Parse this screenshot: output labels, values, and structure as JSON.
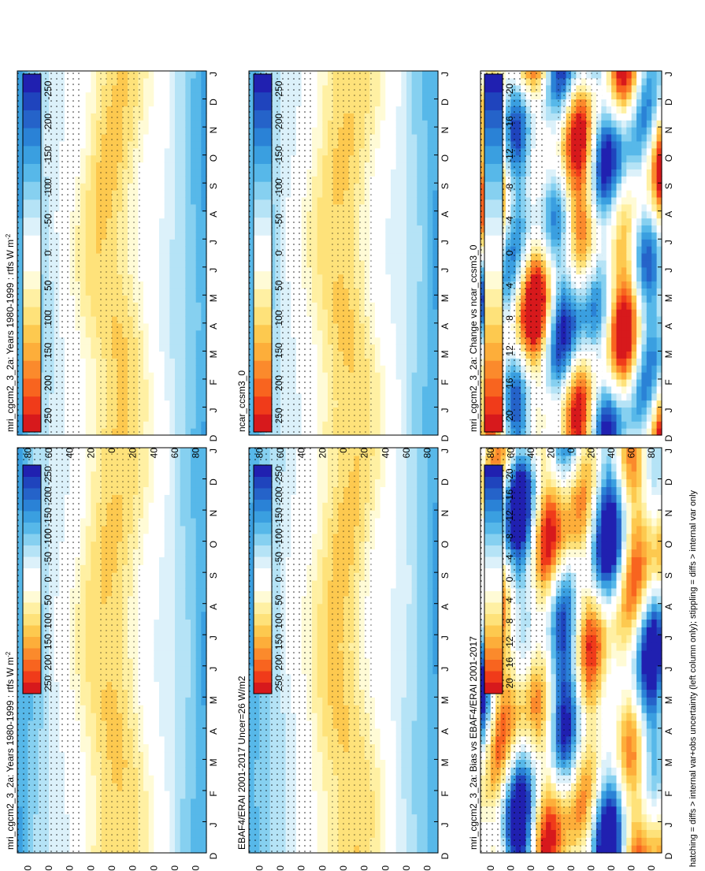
{
  "footnote": "hatching = diffs > internal var+obs uncertainty (left column only); stippling = diffs > internal var only",
  "month_ticks": [
    "D",
    "J",
    "F",
    "M",
    "A",
    "M",
    "J",
    "J",
    "A",
    "S",
    "O",
    "N",
    "D",
    "J"
  ],
  "lat_ticks": [
    "80",
    "60",
    "40",
    "20",
    "0",
    "20",
    "40",
    "60",
    "80"
  ],
  "colorbar_main": [
    "250",
    "200",
    "150",
    "100",
    "50",
    "0",
    "-50",
    "-100",
    "-150",
    "-200",
    "-250"
  ],
  "colorbar_diff": [
    "20",
    "16",
    "12",
    "8",
    "4",
    "0",
    "-4",
    "-8",
    "-12",
    "-16",
    "-20"
  ],
  "palette": [
    "#d7191c",
    "#f03b1a",
    "#f8641f",
    "#fb8a2c",
    "#fdae3a",
    "#fdc94f",
    "#fee27a",
    "#fff0a3",
    "#fffbd6",
    "#ffffff",
    "#ffffff",
    "#dcf1fa",
    "#b5e3f6",
    "#86d0f0",
    "#57b8e9",
    "#3a9fe0",
    "#2a82d6",
    "#2563c9",
    "#1f44bd",
    "#2020b0"
  ],
  "chart_data": [
    {
      "id": "p1",
      "type": "heatmap",
      "title": "mri_cgcm2_3_2a: Years 1980-1999 : rtfs W m",
      "title_sup": "-2",
      "x": "month",
      "y": "latitude",
      "colorbar": "main",
      "zmin": -250,
      "zmax": 250
    },
    {
      "id": "p2",
      "type": "heatmap",
      "title": "mri_cgcm2_3_2a: Years 1980-1999 : rtfs W m",
      "title_sup": "-2",
      "x": "month",
      "y": "latitude",
      "colorbar": "main",
      "zmin": -250,
      "zmax": 250
    },
    {
      "id": "p3",
      "type": "heatmap",
      "title": "EBAF4/ERAI 2001-2017 Uncer=26 W/m2",
      "title_sup": "",
      "x": "month",
      "y": "latitude",
      "colorbar": "main",
      "zmin": -250,
      "zmax": 250
    },
    {
      "id": "p4",
      "type": "heatmap",
      "title": "ncar_ccsm3_0",
      "title_sup": "",
      "x": "month",
      "y": "latitude",
      "colorbar": "main",
      "zmin": -250,
      "zmax": 250
    },
    {
      "id": "p5",
      "type": "heatmap",
      "title": "mri_cgcm2_3_2a: Bias vs EBAF4/ERAI 2001-2017",
      "title_sup": "",
      "x": "month",
      "y": "latitude",
      "colorbar": "diff",
      "zmin": -20,
      "zmax": 20
    },
    {
      "id": "p6",
      "type": "heatmap",
      "title": "mri_cgcm2_3_2a: Change vs ncar_ccsm3_0",
      "title_sup": "",
      "x": "month",
      "y": "latitude",
      "colorbar": "diff",
      "zmin": -20,
      "zmax": 20
    }
  ]
}
